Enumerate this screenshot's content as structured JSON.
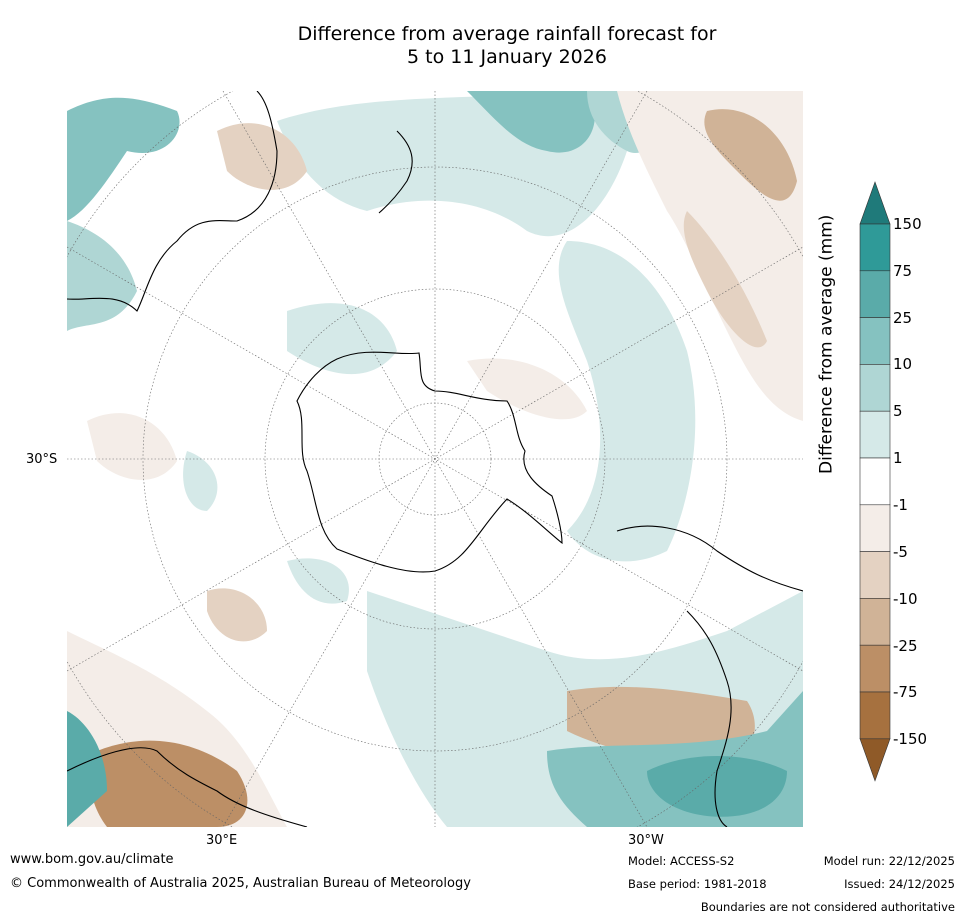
{
  "title_line1": "Difference from average rainfall forecast for",
  "title_line2": "5 to 11 January 2026",
  "axis_labels": {
    "lat": "30°S",
    "lon_east": "30°E",
    "lon_west": "30°W"
  },
  "colorbar": {
    "title": "Difference from average (mm)",
    "ticks": [
      "150",
      "75",
      "25",
      "10",
      "5",
      "1",
      "-1",
      "-5",
      "-10",
      "-25",
      "-75",
      "-150"
    ],
    "colors": [
      "#1f7a7a",
      "#2f9a98",
      "#5aaba9",
      "#85c2c0",
      "#afd6d4",
      "#d5e9e8",
      "#ffffff",
      "#f4ede8",
      "#e4d2c2",
      "#d0b397",
      "#bc8f66",
      "#a6713f",
      "#8f5a28"
    ]
  },
  "footer": {
    "website": "www.bom.gov.au/climate",
    "copyright": "© Commonwealth of Australia 2025, Australian Bureau of Meteorology",
    "model": "Model: ACCESS-S2",
    "base_period": "Base period: 1981-2018",
    "model_run": "Model run: 22/12/2025",
    "issued": "Issued: 24/12/2025",
    "disclaimer": "Boundaries are not considered authoritative"
  }
}
